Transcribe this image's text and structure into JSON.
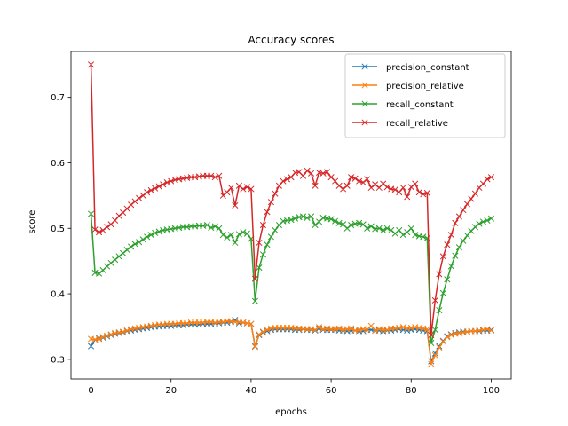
{
  "chart_data": {
    "type": "line",
    "title": "Accuracy scores",
    "xlabel": "epochs",
    "ylabel": "score",
    "xlim": [
      -5,
      105
    ],
    "ylim": [
      0.27,
      0.77
    ],
    "xticks": [
      0,
      20,
      40,
      60,
      80,
      100
    ],
    "yticks": [
      0.3,
      0.4,
      0.5,
      0.6,
      0.7
    ],
    "xtick_labels": [
      "0",
      "20",
      "40",
      "60",
      "80",
      "100"
    ],
    "ytick_labels": [
      "0.3",
      "0.4",
      "0.5",
      "0.6",
      "0.7"
    ],
    "legend_position": "top-right",
    "marker": "x",
    "series": [
      {
        "name": "precision_constant",
        "color": "#1f77b4",
        "values": [
          0.32,
          0.33,
          0.332,
          0.333,
          0.335,
          0.337,
          0.339,
          0.34,
          0.341,
          0.343,
          0.344,
          0.345,
          0.346,
          0.347,
          0.348,
          0.349,
          0.35,
          0.35,
          0.351,
          0.351,
          0.351,
          0.352,
          0.352,
          0.352,
          0.353,
          0.353,
          0.353,
          0.353,
          0.354,
          0.354,
          0.354,
          0.355,
          0.355,
          0.356,
          0.356,
          0.357,
          0.36,
          0.355,
          0.356,
          0.355,
          0.354,
          0.32,
          0.337,
          0.341,
          0.343,
          0.345,
          0.346,
          0.346,
          0.346,
          0.346,
          0.346,
          0.345,
          0.345,
          0.346,
          0.345,
          0.345,
          0.344,
          0.347,
          0.345,
          0.345,
          0.345,
          0.345,
          0.344,
          0.344,
          0.343,
          0.344,
          0.344,
          0.343,
          0.343,
          0.345,
          0.345,
          0.344,
          0.344,
          0.343,
          0.344,
          0.344,
          0.345,
          0.346,
          0.345,
          0.344,
          0.345,
          0.346,
          0.345,
          0.344,
          0.343,
          0.297,
          0.309,
          0.32,
          0.328,
          0.335,
          0.338,
          0.34,
          0.341,
          0.342,
          0.342,
          0.343,
          0.343,
          0.343,
          0.344,
          0.344,
          0.345
        ]
      },
      {
        "name": "precision_relative",
        "color": "#ff7f0e",
        "values": [
          0.331,
          0.33,
          0.331,
          0.334,
          0.336,
          0.338,
          0.34,
          0.341,
          0.342,
          0.344,
          0.346,
          0.347,
          0.348,
          0.349,
          0.35,
          0.351,
          0.352,
          0.353,
          0.353,
          0.354,
          0.354,
          0.354,
          0.355,
          0.355,
          0.355,
          0.356,
          0.356,
          0.356,
          0.356,
          0.357,
          0.357,
          0.356,
          0.357,
          0.357,
          0.358,
          0.358,
          0.357,
          0.357,
          0.356,
          0.355,
          0.354,
          0.319,
          0.338,
          0.342,
          0.345,
          0.347,
          0.348,
          0.348,
          0.348,
          0.348,
          0.348,
          0.347,
          0.347,
          0.346,
          0.346,
          0.346,
          0.345,
          0.349,
          0.346,
          0.347,
          0.346,
          0.346,
          0.347,
          0.345,
          0.346,
          0.347,
          0.344,
          0.345,
          0.346,
          0.345,
          0.351,
          0.344,
          0.346,
          0.345,
          0.345,
          0.347,
          0.347,
          0.348,
          0.349,
          0.347,
          0.348,
          0.349,
          0.348,
          0.347,
          0.346,
          0.293,
          0.306,
          0.318,
          0.327,
          0.334,
          0.337,
          0.339,
          0.34,
          0.341,
          0.342,
          0.343,
          0.343,
          0.344,
          0.345,
          0.346,
          0.344
        ]
      },
      {
        "name": "recall_constant",
        "color": "#2ca02c",
        "values": [
          0.522,
          0.432,
          0.431,
          0.436,
          0.442,
          0.447,
          0.452,
          0.457,
          0.462,
          0.467,
          0.472,
          0.476,
          0.479,
          0.483,
          0.487,
          0.49,
          0.493,
          0.495,
          0.497,
          0.498,
          0.499,
          0.5,
          0.501,
          0.502,
          0.502,
          0.503,
          0.503,
          0.504,
          0.504,
          0.505,
          0.501,
          0.503,
          0.5,
          0.49,
          0.486,
          0.49,
          0.478,
          0.491,
          0.494,
          0.492,
          0.484,
          0.389,
          0.44,
          0.46,
          0.475,
          0.487,
          0.497,
          0.505,
          0.511,
          0.512,
          0.513,
          0.515,
          0.517,
          0.518,
          0.516,
          0.518,
          0.505,
          0.51,
          0.516,
          0.515,
          0.514,
          0.511,
          0.508,
          0.506,
          0.5,
          0.505,
          0.507,
          0.508,
          0.506,
          0.5,
          0.503,
          0.499,
          0.5,
          0.497,
          0.5,
          0.497,
          0.492,
          0.497,
          0.49,
          0.494,
          0.5,
          0.49,
          0.488,
          0.487,
          0.485,
          0.325,
          0.345,
          0.375,
          0.401,
          0.422,
          0.442,
          0.458,
          0.471,
          0.481,
          0.489,
          0.496,
          0.502,
          0.507,
          0.51,
          0.512,
          0.515
        ]
      },
      {
        "name": "recall_relative",
        "color": "#d62728",
        "values": [
          0.75,
          0.498,
          0.494,
          0.497,
          0.502,
          0.506,
          0.512,
          0.519,
          0.524,
          0.53,
          0.536,
          0.541,
          0.546,
          0.55,
          0.555,
          0.558,
          0.561,
          0.564,
          0.567,
          0.57,
          0.572,
          0.574,
          0.575,
          0.576,
          0.577,
          0.578,
          0.578,
          0.579,
          0.58,
          0.58,
          0.58,
          0.578,
          0.58,
          0.55,
          0.555,
          0.562,
          0.535,
          0.565,
          0.56,
          0.563,
          0.56,
          0.423,
          0.478,
          0.505,
          0.525,
          0.54,
          0.553,
          0.565,
          0.572,
          0.575,
          0.578,
          0.585,
          0.586,
          0.58,
          0.588,
          0.584,
          0.565,
          0.585,
          0.584,
          0.586,
          0.578,
          0.572,
          0.565,
          0.56,
          0.565,
          0.578,
          0.576,
          0.572,
          0.57,
          0.575,
          0.562,
          0.567,
          0.562,
          0.568,
          0.563,
          0.56,
          0.559,
          0.555,
          0.562,
          0.548,
          0.563,
          0.568,
          0.555,
          0.552,
          0.554,
          0.337,
          0.39,
          0.43,
          0.457,
          0.475,
          0.49,
          0.508,
          0.518,
          0.528,
          0.537,
          0.545,
          0.553,
          0.562,
          0.568,
          0.575,
          0.578
        ]
      }
    ]
  }
}
